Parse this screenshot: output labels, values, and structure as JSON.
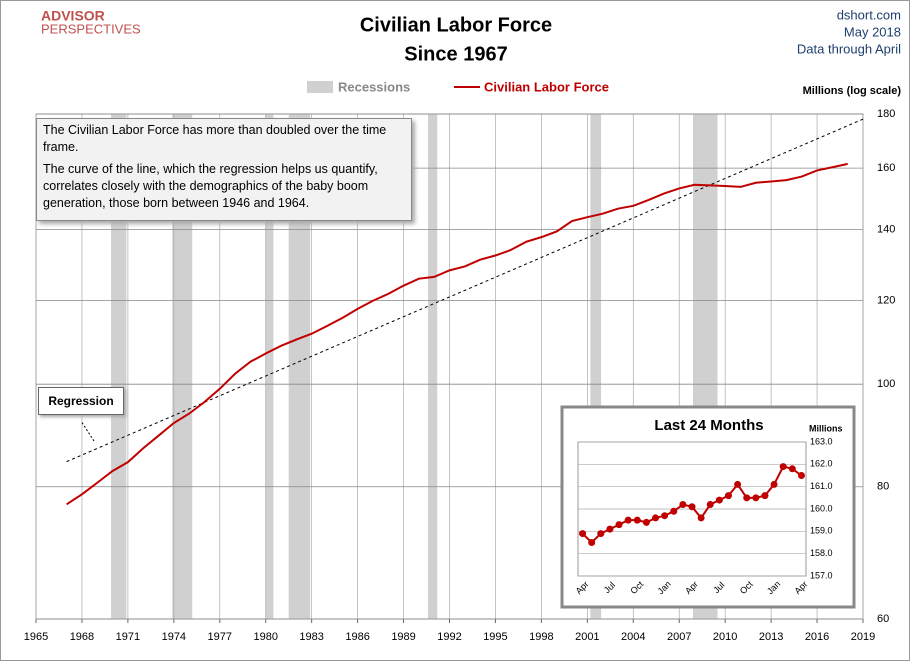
{
  "chart_data": [
    {
      "type": "line",
      "logo": [
        "ADVISOR",
        "PERSPECTIVES"
      ],
      "title": "Civilian Labor Force",
      "subtitle": "Since 1967",
      "source": [
        "dshort.com",
        "May 2018",
        "Data through April"
      ],
      "y_label": "Millions  (log scale)",
      "recession_label": "Recessions",
      "recession_color": "#d0d0d0",
      "recessions": [
        [
          1969.9,
          1970.9
        ],
        [
          1973.9,
          1975.2
        ],
        [
          1980.0,
          1980.5
        ],
        [
          1981.5,
          1982.9
        ],
        [
          1990.6,
          1991.2
        ],
        [
          2001.2,
          2001.9
        ],
        [
          2007.9,
          2009.5
        ]
      ],
      "annotation": [
        "The Civilian Labor Force has more than doubled over the time frame.",
        "The curve of the line, which the regression helps us quantify, correlates closely with the demographics of the baby boom generation, those born between 1946 and 1964."
      ],
      "regression": {
        "label": "Regression",
        "x": [
          1967,
          2019
        ],
        "values": [
          84.5,
          178
        ]
      },
      "x": [
        1967,
        1968,
        1969,
        1970,
        1971,
        1972,
        1973,
        1974,
        1975,
        1976,
        1977,
        1978,
        1979,
        1980,
        1981,
        1982,
        1983,
        1984,
        1985,
        1986,
        1987,
        1988,
        1989,
        1990,
        1991,
        1992,
        1993,
        1994,
        1995,
        1996,
        1997,
        1998,
        1999,
        2000,
        2001,
        2002,
        2003,
        2004,
        2005,
        2006,
        2007,
        2008,
        2009,
        2010,
        2011,
        2012,
        2013,
        2014,
        2015,
        2016,
        2017,
        2018
      ],
      "series": [
        {
          "name": "Civilian Labor Force",
          "color": "#c00000",
          "values": [
            77,
            78.7,
            80.7,
            82.8,
            84.4,
            87,
            89.4,
            91.9,
            93.8,
            96.2,
            99,
            102.3,
            105,
            106.9,
            108.7,
            110.2,
            111.6,
            113.5,
            115.5,
            117.8,
            119.9,
            121.7,
            123.9,
            125.8,
            126.3,
            128.1,
            129.2,
            131.1,
            132.3,
            133.9,
            136.3,
            137.7,
            139.4,
            142.6,
            143.8,
            144.9,
            146.5,
            147.4,
            149.3,
            151.4,
            153.1,
            154.3,
            154.1,
            153.9,
            153.6,
            155,
            155.4,
            155.9,
            157.1,
            159.2,
            160.3,
            161.5
          ]
        }
      ],
      "xlim": [
        1965,
        2019
      ],
      "xticks": [
        1965,
        1968,
        1971,
        1974,
        1977,
        1980,
        1983,
        1986,
        1989,
        1992,
        1995,
        1998,
        2001,
        2004,
        2007,
        2010,
        2013,
        2016,
        2019
      ],
      "ylim": [
        60,
        180
      ],
      "yticks": [
        60,
        80,
        100,
        120,
        140,
        160,
        180
      ],
      "log_scale": true,
      "grid": true
    },
    {
      "type": "line",
      "title": "Last 24 Months",
      "y_label": "Millions",
      "categories": [
        "Apr",
        null,
        null,
        "Jul",
        null,
        null,
        "Oct",
        null,
        null,
        "Jan",
        null,
        null,
        "Apr",
        null,
        null,
        "Jul",
        null,
        null,
        "Oct",
        null,
        null,
        "Jan",
        null,
        null,
        "Apr"
      ],
      "series": [
        {
          "name": "Civilian Labor Force",
          "color": "#c00000",
          "values": [
            158.9,
            158.5,
            158.9,
            159.1,
            159.3,
            159.5,
            159.5,
            159.4,
            159.6,
            159.7,
            159.9,
            160.2,
            160.1,
            159.6,
            160.2,
            160.4,
            160.6,
            161.1,
            160.5,
            160.5,
            160.6,
            161.1,
            161.9,
            161.8,
            161.5
          ]
        }
      ],
      "ylim": [
        157,
        163
      ],
      "yticks": [
        {
          "value": 157,
          "label": "157.0"
        },
        {
          "value": 158,
          "label": "158.0"
        },
        {
          "value": 159,
          "label": "159.0"
        },
        {
          "value": 160,
          "label": "160.0"
        },
        {
          "value": 161,
          "label": "161.0"
        },
        {
          "value": 162,
          "label": "162.0"
        },
        {
          "value": 163,
          "label": "163.0"
        }
      ],
      "grid": true
    }
  ]
}
